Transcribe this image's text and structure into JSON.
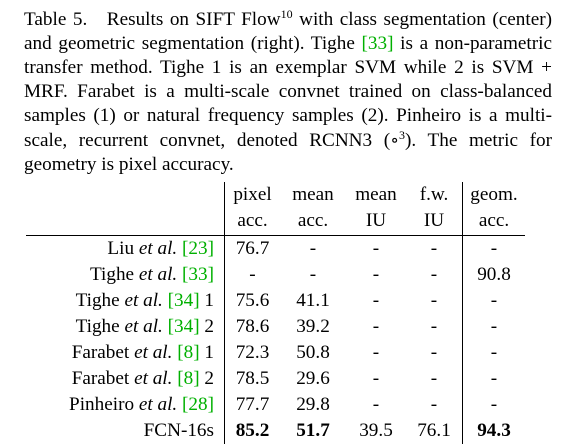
{
  "caption": {
    "label": "Table 5.",
    "p1": "Results on SIFT Flow",
    "footnote": "10",
    "p2": " with class segmentation (center) and geometric segmentation (right). Tighe ",
    "ref1": "[33]",
    "p3": " is a non-parametric transfer method. Tighe 1 is an exemplar SVM while 2 is SVM + MRF. Farabet is a multi-scale convnet trained on class-balanced samples (1) or natural frequency samples (2). Pinheiro is a multi-scale, recurrent convnet, denoted ",
    "rcnn": "RCNN",
    "rcnn_sub": "3",
    "circ_open": " (",
    "circ": "∘",
    "circ_sup": "3",
    "p4": "). The metric for geometry is pixel accuracy."
  },
  "table": {
    "header_row1": [
      "pixel",
      "mean",
      "mean",
      "f.w.",
      "geom."
    ],
    "header_row2": [
      "acc.",
      "acc.",
      "IU",
      "IU",
      "acc."
    ],
    "rows": [
      {
        "name": "Liu",
        "etal": "et al.",
        "ref": "[23]",
        "suffix": "",
        "values": [
          "76.7",
          "-",
          "-",
          "-",
          "-"
        ]
      },
      {
        "name": "Tighe",
        "etal": "et al.",
        "ref": "[33]",
        "suffix": "",
        "values": [
          "-",
          "-",
          "-",
          "-",
          "90.8"
        ]
      },
      {
        "name": "Tighe",
        "etal": "et al.",
        "ref": "[34]",
        "suffix": " 1",
        "values": [
          "75.6",
          "41.1",
          "-",
          "-",
          "-"
        ]
      },
      {
        "name": "Tighe",
        "etal": "et al.",
        "ref": "[34]",
        "suffix": " 2",
        "values": [
          "78.6",
          "39.2",
          "-",
          "-",
          "-"
        ]
      },
      {
        "name": "Farabet",
        "etal": "et al.",
        "ref": "[8]",
        "suffix": " 1",
        "values": [
          "72.3",
          "50.8",
          "-",
          "-",
          "-"
        ]
      },
      {
        "name": "Farabet",
        "etal": "et al.",
        "ref": "[8]",
        "suffix": " 2",
        "values": [
          "78.5",
          "29.6",
          "-",
          "-",
          "-"
        ]
      },
      {
        "name": "Pinheiro",
        "etal": "et al.",
        "ref": "[28]",
        "suffix": "",
        "values": [
          "77.7",
          "29.8",
          "-",
          "-",
          "-"
        ]
      }
    ],
    "ours": {
      "name": "FCN-16s",
      "values": [
        "85.2",
        "51.7",
        "39.5",
        "76.1",
        "94.3"
      ]
    }
  }
}
